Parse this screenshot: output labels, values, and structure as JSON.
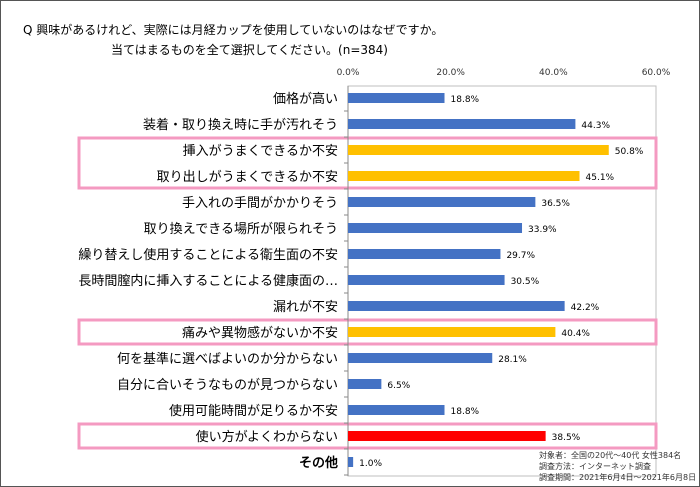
{
  "chart_data": {
    "type": "bar",
    "orientation": "horizontal",
    "title": "Q 興味があるけれど、実際には月経カップを使用していないのはなぜですか。",
    "subtitle": "当てはまるものを全て選択してください。(n=384)",
    "xlim": [
      0,
      60
    ],
    "xticks": [
      "0.0%",
      "20.0%",
      "40.0%",
      "60.0%"
    ],
    "categories": [
      "価格が高い",
      "装着・取り換え時に手が汚れそう",
      "挿入がうまくできるか不安",
      "取り出しがうまくできるか不安",
      "手入れの手間がかかりそう",
      "取り換えできる場所が限られそう",
      "繰り替えし使用することによる衛生面の不安",
      "長時間膣内に挿入することによる健康面の…",
      "漏れが不安",
      "痛みや異物感がないか不安",
      "何を基準に選べばよいのか分からない",
      "自分に合いそうなものが見つからない",
      "使用可能時間が足りるか不安",
      "使い方がよくわからない",
      "その他"
    ],
    "values": [
      18.8,
      44.3,
      50.8,
      45.1,
      36.5,
      33.9,
      29.7,
      30.5,
      42.2,
      40.4,
      28.1,
      6.5,
      18.8,
      38.5,
      1.0
    ],
    "labels": [
      "18.8%",
      "44.3%",
      "50.8%",
      "45.1%",
      "36.5%",
      "33.9%",
      "29.7%",
      "30.5%",
      "42.2%",
      "40.4%",
      "28.1%",
      "6.5%",
      "18.8%",
      "38.5%",
      "1.0%"
    ],
    "bar_colors": [
      "#4472c4",
      "#4472c4",
      "#ffc000",
      "#ffc000",
      "#4472c4",
      "#4472c4",
      "#4472c4",
      "#4472c4",
      "#4472c4",
      "#ffc000",
      "#4472c4",
      "#4472c4",
      "#4472c4",
      "#ff0000",
      "#4472c4"
    ],
    "highlight_groups": [
      [
        2,
        3
      ],
      [
        9
      ],
      [
        13
      ]
    ],
    "highlight_color": "#f49ac1"
  },
  "notes": [
    "対象者：全国の20代～40代 女性384名",
    "調査方法：インターネット調査",
    "調査期間：2021年6月4日～2021年6月8日"
  ]
}
